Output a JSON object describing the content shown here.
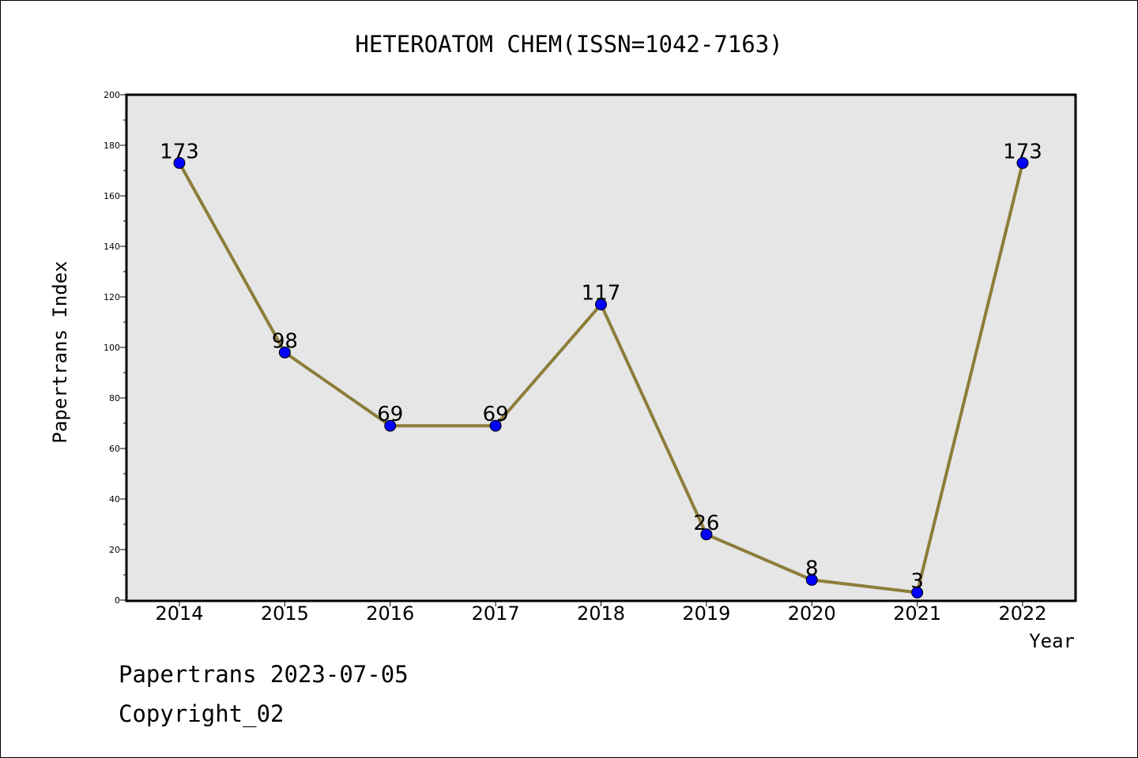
{
  "chart_data": {
    "type": "line",
    "title": "HETEROATOM CHEM(ISSN=1042-7163)",
    "xlabel": "Year",
    "ylabel": "Papertrans Index",
    "categories": [
      "2014",
      "2015",
      "2016",
      "2017",
      "2018",
      "2019",
      "2020",
      "2021",
      "2022"
    ],
    "series": [
      {
        "values": [
          173,
          98,
          69,
          69,
          117,
          26,
          8,
          3,
          173
        ]
      }
    ],
    "data_labels": [
      "173",
      "98",
      "69",
      "69",
      "117",
      "26",
      "8",
      "3",
      "173"
    ],
    "ylim": [
      0,
      200
    ],
    "yticks": [
      "0",
      "20",
      "40",
      "60",
      "80",
      "100",
      "120",
      "140",
      "160",
      "180",
      "200"
    ],
    "grid": false,
    "legend": "none",
    "colors": {
      "line": "#8c7d3a",
      "marker": "#0000ff",
      "plot_background": "#e6e6e6"
    }
  },
  "footer": {
    "date_text": "Papertrans 2023-07-05",
    "copyright_text": "Copyright_02"
  }
}
